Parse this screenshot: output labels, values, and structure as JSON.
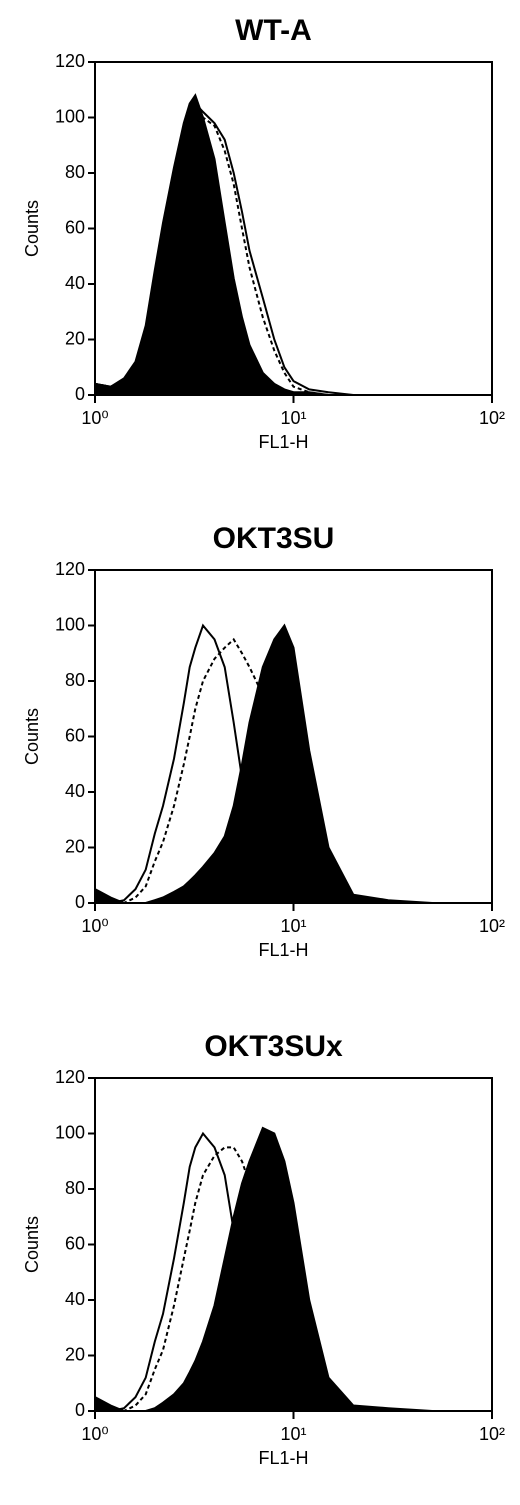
{
  "chart_data": [
    {
      "type": "histogram",
      "title": "WT-A",
      "xlabel": "FL1-H",
      "ylabel": "Counts",
      "xscale": "log",
      "xlim": [
        1,
        100
      ],
      "xticks": [
        {
          "value": 1,
          "label": "10⁰"
        },
        {
          "value": 10,
          "label": "10¹"
        },
        {
          "value": 100,
          "label": "10²"
        }
      ],
      "ylim": [
        0,
        120
      ],
      "yticks": [
        0,
        20,
        40,
        60,
        80,
        100,
        120
      ],
      "x": [
        1,
        1.2,
        1.4,
        1.6,
        1.8,
        2,
        2.2,
        2.5,
        2.8,
        3,
        3.2,
        3.5,
        4,
        4.5,
        5,
        5.5,
        6,
        7,
        8,
        9,
        10,
        12,
        15,
        20,
        30,
        50,
        100
      ],
      "series": [
        {
          "color": "#000000",
          "style": "filled",
          "values": [
            4,
            3,
            6,
            12,
            25,
            45,
            62,
            82,
            98,
            105,
            108,
            100,
            85,
            62,
            42,
            28,
            18,
            8,
            4,
            2,
            1,
            1,
            0,
            0,
            0,
            0,
            0
          ]
        },
        {
          "color": "#000000",
          "style": "solid",
          "values": [
            4,
            3,
            5,
            10,
            22,
            40,
            55,
            75,
            92,
            100,
            105,
            102,
            98,
            92,
            80,
            66,
            52,
            35,
            20,
            10,
            5,
            2,
            1,
            0,
            0,
            0,
            0
          ]
        },
        {
          "color": "#000000",
          "style": "dashed",
          "values": [
            4,
            3,
            5,
            10,
            22,
            40,
            55,
            76,
            93,
            100,
            104,
            100,
            97,
            88,
            76,
            60,
            46,
            28,
            16,
            8,
            3,
            1,
            0,
            0,
            0,
            0,
            0
          ]
        }
      ]
    },
    {
      "type": "histogram",
      "title": "OKT3SU",
      "xlabel": "FL1-H",
      "ylabel": "Counts",
      "xscale": "log",
      "xlim": [
        1,
        100
      ],
      "xticks": [
        {
          "value": 1,
          "label": "10⁰"
        },
        {
          "value": 10,
          "label": "10¹"
        },
        {
          "value": 100,
          "label": "10²"
        }
      ],
      "ylim": [
        0,
        120
      ],
      "yticks": [
        0,
        20,
        40,
        60,
        80,
        100,
        120
      ],
      "x": [
        1,
        1.2,
        1.4,
        1.6,
        1.8,
        2,
        2.2,
        2.5,
        2.8,
        3,
        3.2,
        3.5,
        4,
        4.5,
        5,
        5.5,
        6,
        7,
        8,
        9,
        10,
        12,
        15,
        20,
        30,
        50,
        100
      ],
      "series": [
        {
          "color": "#000000",
          "style": "filled",
          "values": [
            5,
            2,
            0,
            0,
            0,
            1,
            2,
            4,
            6,
            8,
            10,
            13,
            18,
            24,
            35,
            50,
            65,
            85,
            95,
            100,
            92,
            55,
            20,
            3,
            1,
            0,
            0
          ]
        },
        {
          "color": "#000000",
          "style": "solid",
          "values": [
            0,
            0,
            1,
            5,
            12,
            25,
            35,
            52,
            72,
            85,
            92,
            100,
            95,
            85,
            65,
            45,
            30,
            15,
            8,
            4,
            2,
            1,
            0,
            0,
            0,
            0,
            0
          ]
        },
        {
          "color": "#000000",
          "style": "dashed",
          "values": [
            0,
            0,
            0,
            2,
            6,
            15,
            22,
            35,
            50,
            60,
            70,
            80,
            88,
            92,
            95,
            90,
            85,
            75,
            60,
            45,
            30,
            12,
            4,
            0,
            0,
            0,
            0
          ]
        }
      ]
    },
    {
      "type": "histogram",
      "title": "OKT3SUx",
      "xlabel": "FL1-H",
      "ylabel": "Counts",
      "xscale": "log",
      "xlim": [
        1,
        100
      ],
      "xticks": [
        {
          "value": 1,
          "label": "10⁰"
        },
        {
          "value": 10,
          "label": "10¹"
        },
        {
          "value": 100,
          "label": "10²"
        }
      ],
      "ylim": [
        0,
        120
      ],
      "yticks": [
        0,
        20,
        40,
        60,
        80,
        100,
        120
      ],
      "x": [
        1,
        1.2,
        1.4,
        1.6,
        1.8,
        2,
        2.2,
        2.5,
        2.8,
        3,
        3.2,
        3.5,
        4,
        4.5,
        5,
        5.5,
        6,
        7,
        8,
        9,
        10,
        12,
        15,
        20,
        30,
        50,
        100
      ],
      "series": [
        {
          "color": "#000000",
          "style": "filled",
          "values": [
            5,
            2,
            0,
            0,
            0,
            1,
            3,
            6,
            10,
            14,
            18,
            25,
            38,
            55,
            70,
            82,
            90,
            102,
            100,
            90,
            75,
            40,
            12,
            2,
            1,
            0,
            0
          ]
        },
        {
          "color": "#000000",
          "style": "solid",
          "values": [
            0,
            0,
            1,
            5,
            12,
            25,
            35,
            55,
            75,
            88,
            95,
            100,
            95,
            85,
            65,
            45,
            30,
            15,
            8,
            4,
            2,
            1,
            0,
            0,
            0,
            0,
            0
          ]
        },
        {
          "color": "#000000",
          "style": "dashed",
          "values": [
            0,
            0,
            0,
            2,
            6,
            15,
            22,
            38,
            55,
            65,
            75,
            85,
            92,
            95,
            95,
            90,
            82,
            70,
            55,
            40,
            25,
            10,
            3,
            0,
            0,
            0,
            0
          ]
        }
      ]
    }
  ]
}
